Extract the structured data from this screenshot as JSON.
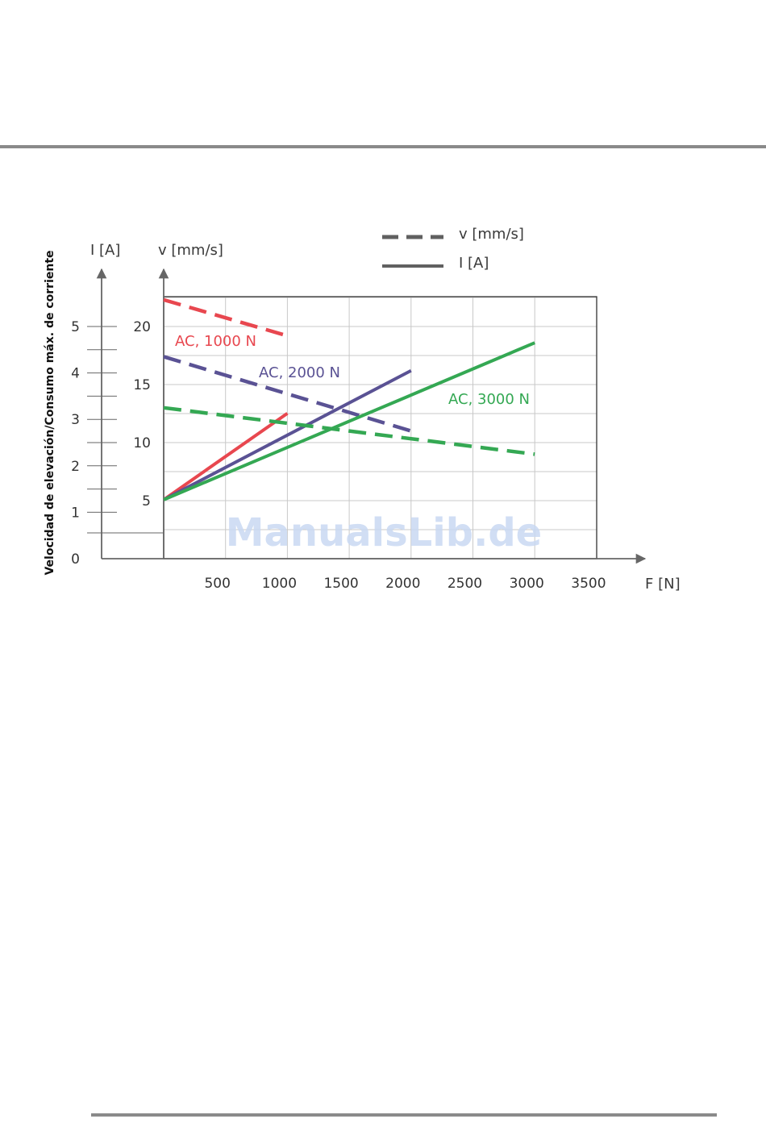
{
  "chart_data": {
    "type": "line",
    "ylabel": "Velocidad de elevación/Consumo máx. de corriente",
    "xlabel": "F [N]",
    "y_current_label": "I [A]",
    "y_speed_label": "v [mm/s]",
    "legend": {
      "position": "top",
      "dashed_label": "v [mm/s]",
      "solid_label": "I [A]"
    },
    "x_ticks": [
      "500",
      "1000",
      "1500",
      "2000",
      "2500",
      "3000",
      "3500"
    ],
    "x_range": [
      0,
      3500
    ],
    "speed_ticks": [
      "5",
      "10",
      "15",
      "20"
    ],
    "speed_range": [
      0,
      22.5
    ],
    "current_ticks": [
      "0",
      "1",
      "2",
      "3",
      "4",
      "5"
    ],
    "current_range": [
      0,
      5.6
    ],
    "grid": true,
    "series": [
      {
        "name": "AC, 1000 N",
        "color": "#e8474f",
        "speed": {
          "x": [
            0,
            1000
          ],
          "y": [
            22.3,
            19.2
          ]
        },
        "current": {
          "x": [
            0,
            1000
          ],
          "y": [
            1.27,
            3.13
          ]
        }
      },
      {
        "name": "AC, 2000 N",
        "color": "#5a5294",
        "speed": {
          "x": [
            0,
            2000
          ],
          "y": [
            17.4,
            11.0
          ]
        },
        "current": {
          "x": [
            0,
            2000
          ],
          "y": [
            1.27,
            4.05
          ]
        }
      },
      {
        "name": "AC, 3000 N",
        "color": "#34a853",
        "speed": {
          "x": [
            0,
            3000
          ],
          "y": [
            13.0,
            9.0
          ]
        },
        "current": {
          "x": [
            0,
            3000
          ],
          "y": [
            1.27,
            4.65
          ]
        }
      }
    ],
    "watermark": "ManualsLib.de",
    "colors": {
      "axis": "#666666",
      "grid": "#c8c8c8",
      "frame": "#333333",
      "rule": "#8a8a8a"
    }
  }
}
